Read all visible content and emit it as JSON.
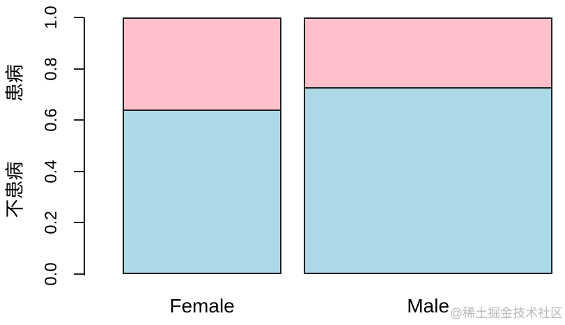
{
  "chart_data": {
    "type": "bar",
    "subtype": "spineplot-stacked-proportions",
    "title": "",
    "xlabel": "",
    "ylabel": "",
    "categories": [
      "Female",
      "Male"
    ],
    "series": [
      {
        "name": "不患病",
        "color": "#ADD8E6",
        "values": [
          0.64,
          0.73
        ]
      },
      {
        "name": "患病",
        "color": "#FFC0CB",
        "values": [
          0.36,
          0.27
        ]
      }
    ],
    "bar_width_fractions": [
      0.39,
      0.61
    ],
    "ylim": [
      0,
      1
    ],
    "yticks": [
      0.0,
      0.2,
      0.4,
      0.6,
      0.8,
      1.0
    ],
    "ytick_labels": [
      "0.0",
      "0.2",
      "0.4",
      "0.6",
      "0.8",
      "1.0"
    ],
    "left_segment_labels": [
      {
        "label": "患病",
        "center_fraction": 0.745
      },
      {
        "label": "不患病",
        "center_fraction": 0.33
      }
    ],
    "legend": "none",
    "grid": false
  },
  "watermark": {
    "text": "@稀土掘金技术社区",
    "color": "#b9b9b9"
  },
  "colors": {
    "background": "#ffffff",
    "axis": "#1f1f1f",
    "bar_border": "#1f1f1f",
    "text": "#000000",
    "no_disease_fill": "#ADD8E6",
    "disease_fill": "#FFC0CB"
  }
}
